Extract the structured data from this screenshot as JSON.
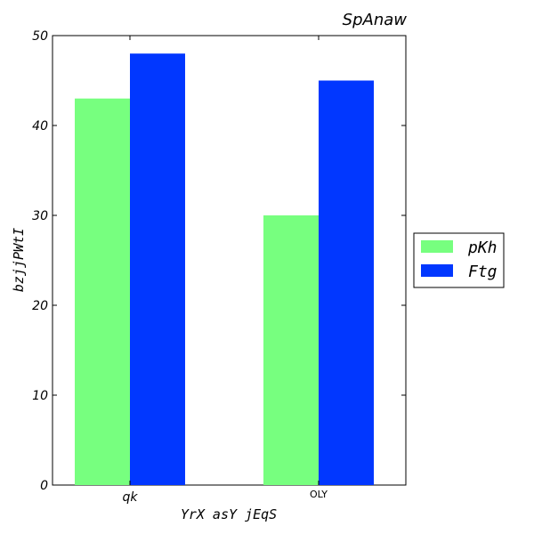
{
  "chart_data": {
    "type": "bar",
    "title": "SpAnaw",
    "xlabel": "YrX asY jEqS",
    "ylabel": "bzjjPWtI",
    "categories": [
      "qk",
      "OLY"
    ],
    "series": [
      {
        "name": "pKh",
        "values": [
          43,
          30
        ],
        "color": "#77ff7f"
      },
      {
        "name": "Ftg",
        "values": [
          48,
          45
        ],
        "color": "#0137ff"
      }
    ],
    "ylim": [
      0,
      50
    ],
    "yticks": [
      "0",
      "10",
      "20",
      "30",
      "40",
      "50"
    ],
    "grid": false,
    "legend_position": "right"
  }
}
